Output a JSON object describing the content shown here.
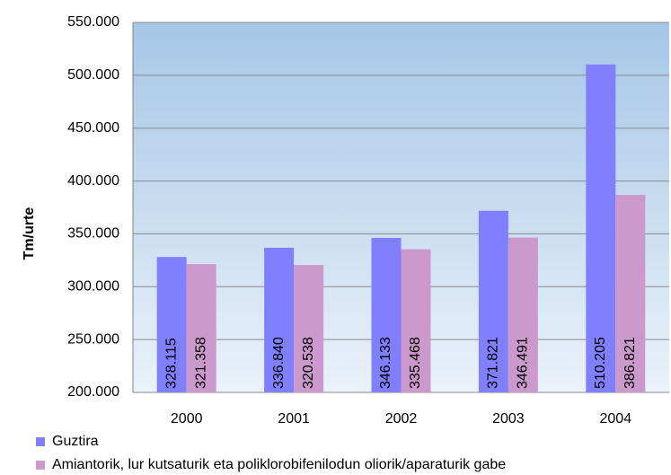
{
  "chart_data": {
    "type": "bar",
    "y_label": "Tm/urte",
    "categories": [
      "2000",
      "2001",
      "2002",
      "2003",
      "2004"
    ],
    "series": [
      {
        "name": "Guztira",
        "color": "#8080ff",
        "values": [
          328115,
          336840,
          346133,
          371821,
          510205
        ],
        "value_labels": [
          "328.115",
          "336.840",
          "346.133",
          "371.821",
          "510.205"
        ]
      },
      {
        "name": "Amiantorik, lur kutsaturik eta poliklorobifenilodun oliorik/aparaturik gabe",
        "color": "#cc99cc",
        "values": [
          321358,
          320538,
          335468,
          346491,
          386821
        ],
        "value_labels": [
          "321.358",
          "320.538",
          "335.468",
          "346.491",
          "386.821"
        ]
      }
    ],
    "ylim": [
      200000,
      550000
    ],
    "yticks": [
      {
        "value": 200000,
        "label": "200.000"
      },
      {
        "value": 250000,
        "label": "250.000"
      },
      {
        "value": 300000,
        "label": "300.000"
      },
      {
        "value": 350000,
        "label": "350.000"
      },
      {
        "value": 400000,
        "label": "400.000"
      },
      {
        "value": 450000,
        "label": "450.000"
      },
      {
        "value": 500000,
        "label": "500.000"
      },
      {
        "value": 550000,
        "label": "550.000"
      }
    ],
    "grid": true,
    "legend": "bottom-left"
  }
}
